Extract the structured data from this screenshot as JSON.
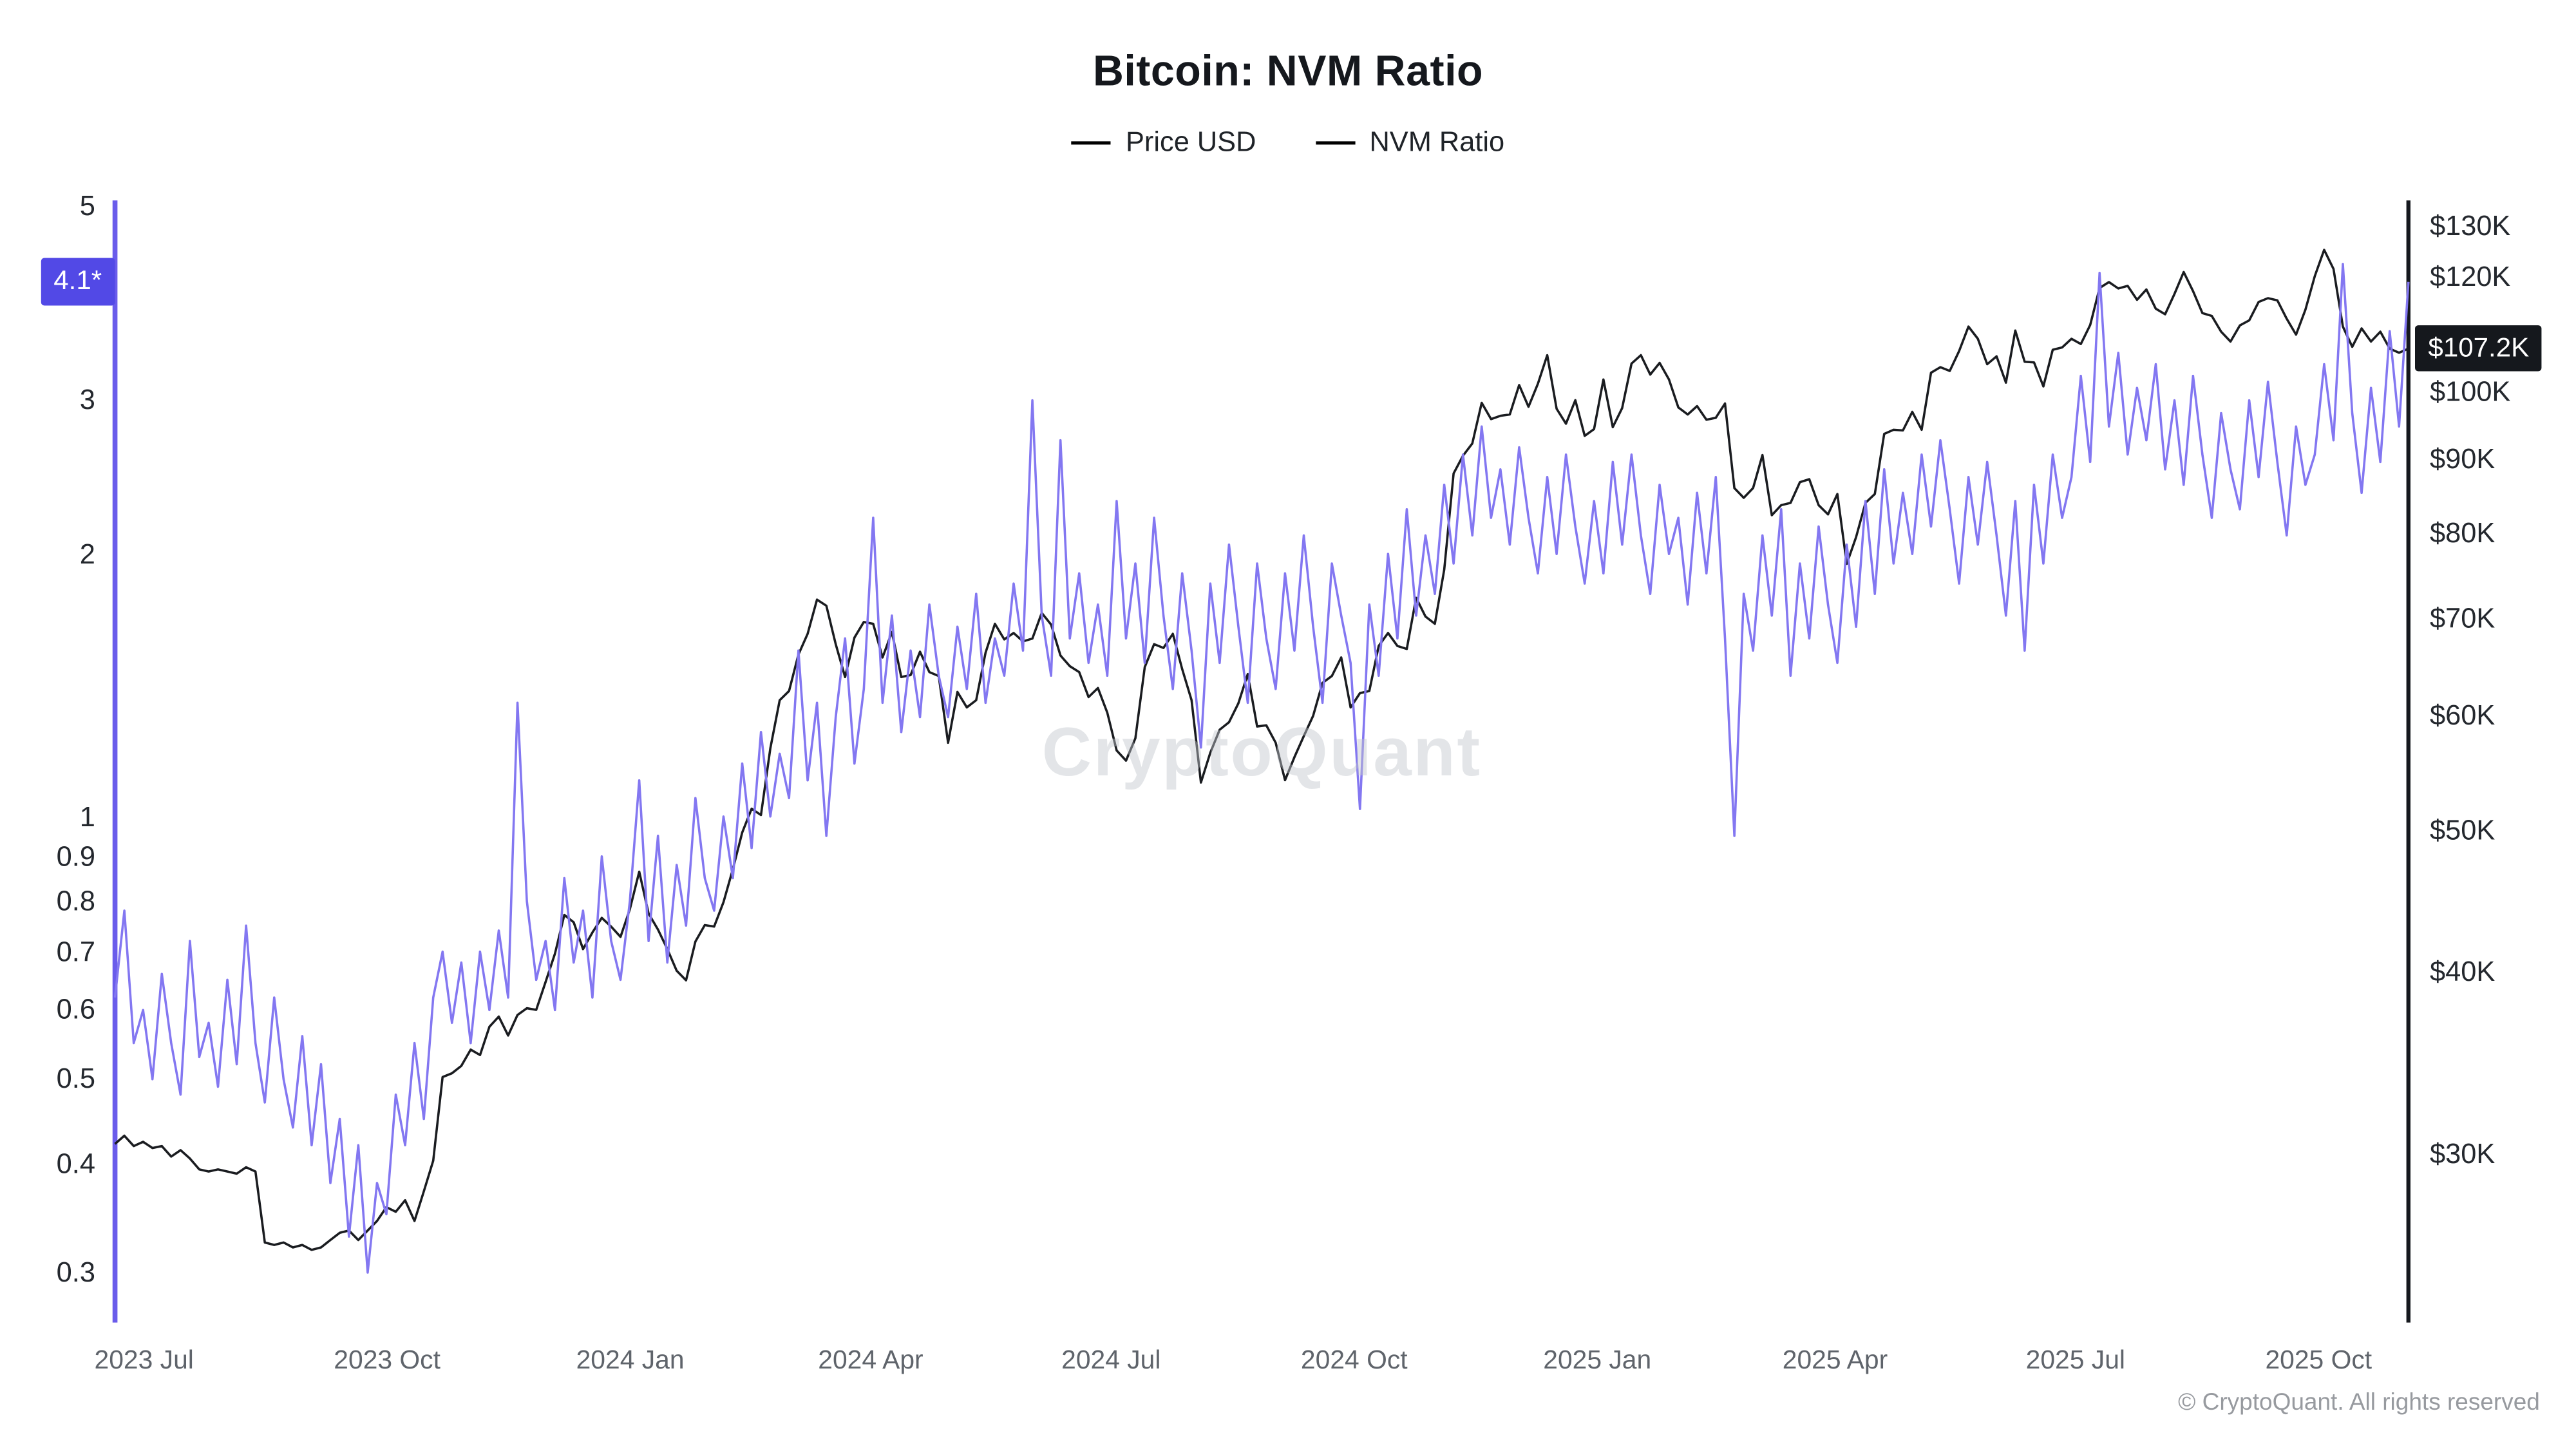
{
  "page": {
    "title": "Bitcoin: NVM Ratio",
    "watermark": "CryptoQuant",
    "footer": "© CryptoQuant. All rights reserved",
    "colors": {
      "price_line": "#1a1c20",
      "nvm_line": "#8377f1",
      "nvm_axis": "#6a5ceb",
      "price_axis": "#15181d",
      "nvm_badge_bg": "#5249e6",
      "price_badge_bg": "#15181d"
    }
  },
  "legend": [
    {
      "label": "Price USD",
      "color": "#1a1c20"
    },
    {
      "label": "NVM Ratio",
      "color": "#8377f1"
    }
  ],
  "chart_data": {
    "type": "line",
    "title": "Bitcoin: NVM Ratio",
    "grid": false,
    "legend_position": "top",
    "x_start_date": "2023-06-20",
    "x_end_date": "2025-11-05",
    "x_total_days": 868,
    "x_ticks": [
      {
        "label": "2023 Jul",
        "day": 11
      },
      {
        "label": "2023 Oct",
        "day": 103
      },
      {
        "label": "2024 Jan",
        "day": 195
      },
      {
        "label": "2024 Apr",
        "day": 286
      },
      {
        "label": "2024 Jul",
        "day": 377
      },
      {
        "label": "2024 Oct",
        "day": 469
      },
      {
        "label": "2025 Jan",
        "day": 561
      },
      {
        "label": "2025 Apr",
        "day": 651
      },
      {
        "label": "2025 Jul",
        "day": 742
      },
      {
        "label": "2025 Oct",
        "day": 834
      }
    ],
    "y_left": {
      "name": "NVM Ratio",
      "scale": "log",
      "domain": [
        0.263,
        5.085
      ],
      "ticks": [
        {
          "label": "5",
          "value": 5
        },
        {
          "label": "3",
          "value": 3
        },
        {
          "label": "2",
          "value": 2
        },
        {
          "label": "1",
          "value": 1
        },
        {
          "label": "0.9",
          "value": 0.9
        },
        {
          "label": "0.8",
          "value": 0.8
        },
        {
          "label": "0.7",
          "value": 0.7
        },
        {
          "label": "0.6",
          "value": 0.6
        },
        {
          "label": "0.5",
          "value": 0.5
        },
        {
          "label": "0.4",
          "value": 0.4
        },
        {
          "label": "0.3",
          "value": 0.3
        }
      ],
      "current": {
        "label": "4.1*",
        "value": 4.1
      }
    },
    "y_right": {
      "name": "Price USD",
      "scale": "log",
      "unit": "thousand USD",
      "domain": [
        23.0,
        135.5
      ],
      "ticks": [
        {
          "label": "$130K",
          "value": 130
        },
        {
          "label": "$120K",
          "value": 120
        },
        {
          "label": "$100K",
          "value": 100
        },
        {
          "label": "$90K",
          "value": 90
        },
        {
          "label": "$80K",
          "value": 80
        },
        {
          "label": "$70K",
          "value": 70
        },
        {
          "label": "$60K",
          "value": 60
        },
        {
          "label": "$50K",
          "value": 50
        },
        {
          "label": "$40K",
          "value": 40
        },
        {
          "label": "$30K",
          "value": 30
        }
      ],
      "current": {
        "label": "$107.2K",
        "value": 107.2
      }
    },
    "series": [
      {
        "name": "Price USD",
        "axis": "right",
        "color": "#1a1c20",
        "unit": "K USD",
        "values": [
          30.5,
          30.9,
          30.4,
          30.6,
          30.3,
          30.4,
          29.9,
          30.2,
          29.8,
          29.3,
          29.2,
          29.3,
          29.2,
          29.1,
          29.4,
          29.2,
          26.1,
          26.0,
          26.1,
          25.9,
          26.0,
          25.8,
          25.9,
          26.2,
          26.5,
          26.6,
          26.2,
          26.6,
          27.0,
          27.6,
          27.4,
          27.9,
          27.0,
          28.3,
          29.7,
          33.9,
          34.1,
          34.5,
          35.4,
          35.1,
          36.7,
          37.3,
          36.2,
          37.4,
          37.8,
          37.7,
          39.4,
          41.2,
          43.8,
          43.3,
          41.5,
          42.6,
          43.6,
          43.0,
          42.3,
          44.2,
          46.9,
          43.9,
          42.8,
          41.5,
          40.1,
          39.5,
          42.0,
          43.1,
          43.0,
          44.7,
          47.1,
          49.9,
          51.8,
          51.3,
          57.0,
          61.5,
          62.4,
          66.1,
          68.3,
          72.1,
          71.4,
          67.2,
          63.8,
          67.9,
          69.6,
          69.4,
          65.8,
          68.5,
          63.8,
          64.0,
          66.4,
          64.3,
          63.9,
          57.5,
          62.3,
          60.8,
          61.5,
          66.3,
          69.4,
          67.7,
          68.4,
          67.5,
          67.8,
          70.6,
          69.3,
          66.0,
          64.9,
          64.3,
          61.8,
          62.7,
          60.3,
          56.8,
          55.9,
          57.9,
          64.8,
          67.2,
          66.8,
          68.3,
          64.6,
          61.5,
          54.0,
          56.6,
          58.7,
          59.4,
          61.2,
          64.1,
          59.0,
          59.1,
          57.5,
          54.2,
          56.2,
          58.1,
          60.0,
          63.2,
          63.9,
          65.8,
          60.8,
          62.2,
          62.4,
          67.0,
          68.4,
          67.0,
          66.7,
          72.3,
          70.2,
          69.4,
          75.6,
          88.0,
          90.5,
          92.3,
          98.4,
          95.9,
          96.4,
          96.6,
          101.2,
          97.8,
          101.4,
          106.1,
          97.5,
          95.2,
          98.8,
          93.4,
          94.4,
          102.1,
          94.7,
          97.6,
          104.7,
          106.1,
          102.9,
          104.8,
          102.1,
          97.7,
          96.6,
          97.9,
          95.8,
          96.1,
          98.3,
          86.0,
          84.7,
          86.0,
          90.6,
          82.4,
          83.7,
          84.0,
          86.8,
          87.2,
          83.7,
          82.5,
          85.2,
          76.3,
          79.6,
          84.0,
          85.2,
          93.7,
          94.3,
          94.2,
          97.0,
          94.3,
          103.2,
          104.1,
          103.5,
          106.8,
          111.0,
          108.9,
          104.6,
          105.9,
          101.6,
          110.3,
          105.0,
          104.9,
          101.0,
          107.0,
          107.4,
          108.9,
          108.0,
          111.3,
          118.0,
          119.1,
          117.9,
          118.4,
          115.8,
          117.7,
          114.2,
          113.2,
          116.9,
          121.0,
          117.4,
          113.4,
          112.9,
          110.1,
          108.4,
          111.2,
          112.1,
          115.4,
          116.1,
          115.7,
          112.4,
          109.6,
          114.0,
          120.2,
          125.3,
          121.6,
          111.0,
          107.5,
          110.7,
          108.4,
          110.1,
          107.2,
          106.5,
          107.2
        ]
      },
      {
        "name": "NVM Ratio",
        "axis": "left",
        "color": "#8377f1",
        "values": [
          0.62,
          0.78,
          0.55,
          0.6,
          0.5,
          0.66,
          0.55,
          0.48,
          0.72,
          0.53,
          0.58,
          0.49,
          0.65,
          0.52,
          0.75,
          0.55,
          0.47,
          0.62,
          0.5,
          0.44,
          0.56,
          0.42,
          0.52,
          0.38,
          0.45,
          0.33,
          0.42,
          0.3,
          0.38,
          0.35,
          0.48,
          0.42,
          0.55,
          0.45,
          0.62,
          0.7,
          0.58,
          0.68,
          0.55,
          0.7,
          0.6,
          0.74,
          0.62,
          1.35,
          0.8,
          0.65,
          0.72,
          0.6,
          0.85,
          0.68,
          0.78,
          0.62,
          0.9,
          0.72,
          0.65,
          0.8,
          1.1,
          0.72,
          0.95,
          0.68,
          0.88,
          0.75,
          1.05,
          0.85,
          0.78,
          1.0,
          0.85,
          1.15,
          0.92,
          1.25,
          1.0,
          1.18,
          1.05,
          1.55,
          1.1,
          1.35,
          0.95,
          1.3,
          1.6,
          1.15,
          1.4,
          2.2,
          1.35,
          1.7,
          1.25,
          1.55,
          1.3,
          1.75,
          1.45,
          1.3,
          1.65,
          1.4,
          1.8,
          1.35,
          1.6,
          1.45,
          1.85,
          1.55,
          3.0,
          1.7,
          1.45,
          2.7,
          1.6,
          1.9,
          1.5,
          1.75,
          1.45,
          2.3,
          1.6,
          1.95,
          1.5,
          2.2,
          1.7,
          1.4,
          1.9,
          1.55,
          1.2,
          1.85,
          1.5,
          2.05,
          1.65,
          1.35,
          1.95,
          1.6,
          1.4,
          1.9,
          1.55,
          2.1,
          1.65,
          1.35,
          1.95,
          1.7,
          1.5,
          1.02,
          1.75,
          1.45,
          2.0,
          1.6,
          2.25,
          1.7,
          2.1,
          1.8,
          2.4,
          1.95,
          2.6,
          2.1,
          2.8,
          2.2,
          2.5,
          2.05,
          2.65,
          2.2,
          1.9,
          2.45,
          2.0,
          2.6,
          2.15,
          1.85,
          2.3,
          1.9,
          2.55,
          2.05,
          2.6,
          2.1,
          1.8,
          2.4,
          2.0,
          2.2,
          1.75,
          2.35,
          1.9,
          2.45,
          1.6,
          0.95,
          1.8,
          1.55,
          2.1,
          1.7,
          2.25,
          1.45,
          1.95,
          1.6,
          2.15,
          1.75,
          1.5,
          2.05,
          1.65,
          2.3,
          1.8,
          2.5,
          1.95,
          2.35,
          2.0,
          2.6,
          2.15,
          2.7,
          2.25,
          1.85,
          2.45,
          2.05,
          2.55,
          2.1,
          1.7,
          2.3,
          1.55,
          2.4,
          1.95,
          2.6,
          2.2,
          2.45,
          3.2,
          2.55,
          4.2,
          2.8,
          3.4,
          2.6,
          3.1,
          2.7,
          3.3,
          2.5,
          3.0,
          2.4,
          3.2,
          2.6,
          2.2,
          2.9,
          2.5,
          2.25,
          3.0,
          2.45,
          3.15,
          2.55,
          2.1,
          2.8,
          2.4,
          2.6,
          3.3,
          2.7,
          4.3,
          2.9,
          2.35,
          3.1,
          2.55,
          3.6,
          2.8,
          4.1
        ]
      }
    ]
  }
}
